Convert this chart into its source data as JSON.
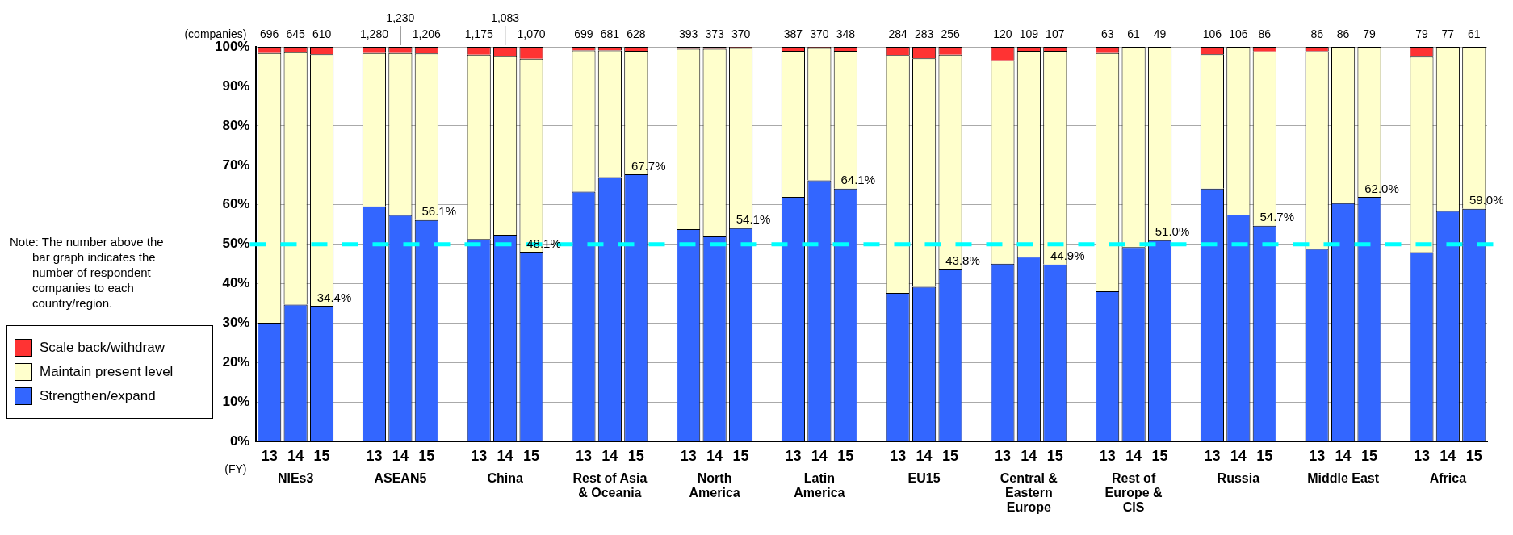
{
  "chart_data": {
    "type": "bar",
    "stacked": true,
    "categories": [
      "13",
      "14",
      "15",
      null,
      "13",
      "14",
      "15",
      null,
      "13",
      "14",
      "15",
      null,
      "13",
      "14",
      "15",
      null,
      "13",
      "14",
      "15",
      null,
      "13",
      "14",
      "15",
      null,
      "13",
      "14",
      "15",
      null,
      "13",
      "14",
      "15",
      null,
      "13",
      "14",
      "15",
      null,
      "13",
      "14",
      "15",
      null,
      "13",
      "14",
      "15",
      null,
      "13",
      "14",
      "15"
    ],
    "series": [
      {
        "name": "Strengthen/expand",
        "color": "#3366ff",
        "values": [
          30.1,
          34.7,
          34.4,
          null,
          59.6,
          57.4,
          56.1,
          null,
          51.3,
          52.4,
          48.1,
          null,
          63.3,
          67.0,
          67.7,
          null,
          53.8,
          52.0,
          54.1,
          null,
          62.0,
          66.2,
          64.1,
          null,
          37.7,
          39.2,
          43.8,
          null,
          45.1,
          46.8,
          44.9,
          null,
          38.1,
          49.3,
          51.0,
          null,
          64.1,
          57.5,
          54.7,
          null,
          48.8,
          60.4,
          62.0,
          null,
          48.0,
          58.4,
          59.0
        ],
        "value_labels": [
          null,
          null,
          "34.4%",
          null,
          null,
          null,
          "56.1%",
          null,
          null,
          null,
          "48.1%",
          null,
          null,
          null,
          "67.7%",
          null,
          null,
          null,
          "54.1%",
          null,
          null,
          null,
          "64.1%",
          null,
          null,
          null,
          "43.8%",
          null,
          null,
          null,
          "44.9%",
          null,
          null,
          null,
          "51.0%",
          null,
          null,
          null,
          "54.7%",
          null,
          null,
          null,
          "62.0%",
          null,
          null,
          null,
          "59.0%"
        ]
      },
      {
        "name": "Maintain present level",
        "color": "#ffffcc",
        "values": [
          68.3,
          63.9,
          63.7,
          null,
          38.8,
          41.0,
          42.2,
          null,
          46.7,
          45.2,
          48.9,
          null,
          35.8,
          32.1,
          31.3,
          null,
          45.7,
          47.5,
          45.6,
          null,
          37.0,
          33.5,
          34.9,
          null,
          60.2,
          57.9,
          54.2,
          null,
          51.5,
          52.2,
          54.1,
          null,
          60.3,
          50.7,
          49.0,
          null,
          34.0,
          42.5,
          44.1,
          null,
          50.1,
          39.6,
          38.0,
          null,
          49.5,
          41.6,
          41.0
        ]
      },
      {
        "name": "Scale back/withdraw",
        "color": "#ff3333",
        "values": [
          1.6,
          1.4,
          1.9,
          null,
          1.6,
          1.6,
          1.7,
          null,
          2.0,
          2.4,
          3.0,
          null,
          0.9,
          0.9,
          1.0,
          null,
          0.5,
          0.5,
          0.3,
          null,
          1.0,
          0.3,
          1.0,
          null,
          2.1,
          2.9,
          2.0,
          null,
          3.4,
          1.0,
          1.0,
          null,
          1.6,
          0,
          0,
          null,
          1.9,
          0,
          1.2,
          null,
          1.1,
          0,
          0,
          null,
          2.5,
          0,
          0
        ]
      }
    ],
    "ylim": [
      0,
      100
    ],
    "yticks": [
      {
        "value": 0,
        "label": "0%"
      },
      {
        "value": 10,
        "label": "10%"
      },
      {
        "value": 20,
        "label": "20%"
      },
      {
        "value": 30,
        "label": "30%"
      },
      {
        "value": 40,
        "label": "40%"
      },
      {
        "value": 50,
        "label": "50%"
      },
      {
        "value": 60,
        "label": "60%"
      },
      {
        "value": 70,
        "label": "70%"
      },
      {
        "value": 80,
        "label": "80%"
      },
      {
        "value": 90,
        "label": "90%"
      },
      {
        "value": 100,
        "label": "100%"
      }
    ],
    "grid": "y",
    "legend": "left",
    "ref_lines": [
      {
        "axis": "y",
        "value": 50,
        "color": "#00ffff",
        "line_style": "dashed"
      }
    ],
    "annotations": [
      "Note: The number above the bar graph indicates the number of respondent companies to each country/region.",
      "(companies)",
      "(FY)",
      "NIEs3",
      "ASEAN5",
      "China",
      "Rest of Asia & Oceania",
      "North America",
      "Latin America",
      "EU15",
      "Central & Eastern Europe",
      "Rest of Europe & CIS",
      "Russia",
      "Middle East",
      "Africa",
      "696",
      "645",
      "610",
      "1,280",
      "1,230",
      "1,206",
      "1,175",
      "1,083",
      "1,070",
      "699",
      "681",
      "628",
      "393",
      "373",
      "370",
      "387",
      "370",
      "348",
      "284",
      "283",
      "256",
      "120",
      "109",
      "107",
      "63",
      "61",
      "49",
      "106",
      "106",
      "86",
      "86",
      "86",
      "79",
      "79",
      "77",
      "61"
    ]
  }
}
